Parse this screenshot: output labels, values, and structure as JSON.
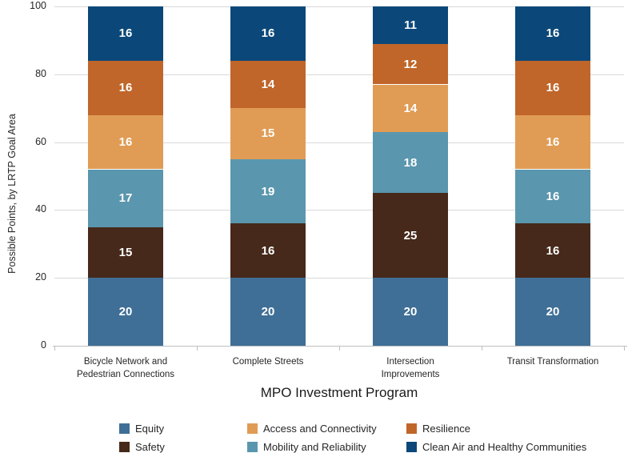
{
  "chart_data": {
    "type": "bar",
    "stacked": true,
    "title": "",
    "xlabel": "MPO Investment Program",
    "ylabel": "Possible Points, by LRTP Goal Area",
    "ylim": [
      0,
      100
    ],
    "yticks": [
      0,
      20,
      40,
      60,
      80,
      100
    ],
    "grid": "horizontal",
    "categories": [
      {
        "label_lines": [
          "Bicycle Network and",
          "Pedestrian Connections"
        ]
      },
      {
        "label_lines": [
          "Complete Streets"
        ]
      },
      {
        "label_lines": [
          "Intersection",
          "Improvements"
        ]
      },
      {
        "label_lines": [
          "Transit Transformation"
        ]
      }
    ],
    "series": [
      {
        "name": "Equity",
        "color": "#3F6F96",
        "values": [
          20,
          20,
          20,
          20
        ]
      },
      {
        "name": "Safety",
        "color": "#46291A",
        "values": [
          15,
          16,
          25,
          16
        ]
      },
      {
        "name": "Mobility and Reliability",
        "color": "#5A96AE",
        "values": [
          17,
          19,
          18,
          16
        ]
      },
      {
        "name": "Access and Connectivity",
        "color": "#E09C55",
        "values": [
          16,
          15,
          14,
          16
        ]
      },
      {
        "name": "Resilience",
        "color": "#C0662A",
        "values": [
          16,
          14,
          12,
          16
        ]
      },
      {
        "name": "Clean Air and Healthy Communities",
        "color": "#0B4879",
        "values": [
          16,
          16,
          11,
          16
        ]
      }
    ],
    "legend": {
      "position": "bottom",
      "display_order": [
        "Equity",
        "Access and Connectivity",
        "Resilience",
        "Safety",
        "Mobility and Reliability",
        "Clean Air and Healthy Communities"
      ]
    },
    "value_label_color": "#FFFFFF",
    "gridline_color": "#D9D9D9",
    "axis_color": "#BFBFBF",
    "text_color": "#262626"
  }
}
